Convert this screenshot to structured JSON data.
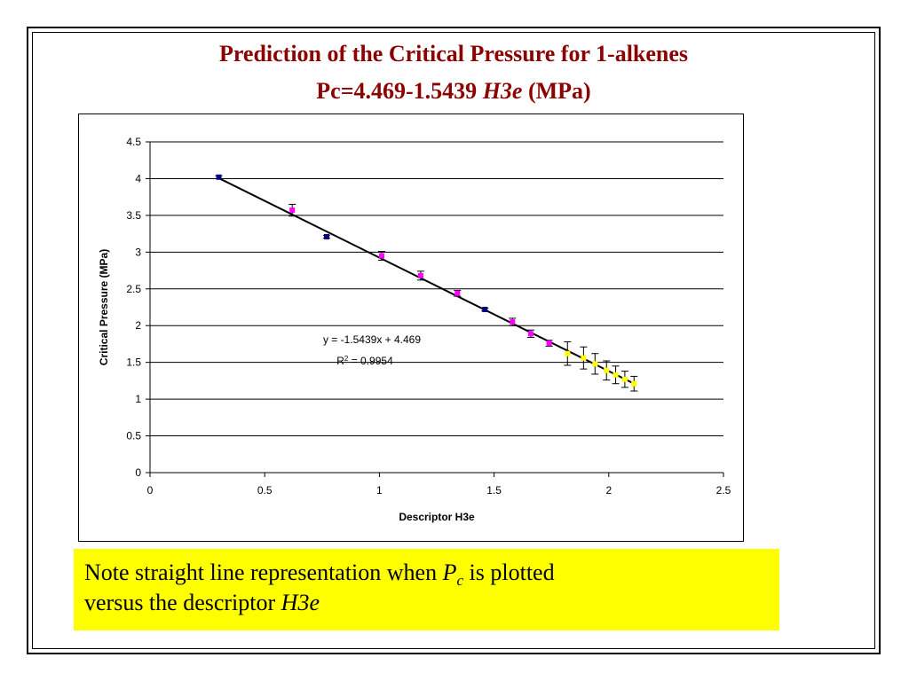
{
  "slide": {
    "title_line1": "Prediction of the Critical Pressure for 1-alkenes",
    "title_line2_prefix": "Pc=4.469-1.5439 ",
    "title_line2_italic": "H3e",
    "title_line2_suffix": " (MPa)"
  },
  "note": {
    "part1": "Note straight line representation when ",
    "italic1": "P",
    "sub1": "c",
    "part2": " is plotted",
    "part3": "versus the descriptor ",
    "italic2": "H3e"
  },
  "colors": {
    "title": "#8b0000",
    "note_background": "#ffff00",
    "series_navy": "#000080",
    "series_magenta": "#ff00ff",
    "series_yellow": "#ffff00",
    "trendline": "#000000"
  },
  "chart_data": {
    "type": "scatter",
    "xlabel": "Descriptor H3e",
    "ylabel": "Critical Pressure (MPa)",
    "xlim": [
      0,
      2.5
    ],
    "ylim": [
      0,
      4.5
    ],
    "x_ticks": [
      "0",
      "0.5",
      "1",
      "1.5",
      "2",
      "2.5"
    ],
    "y_ticks": [
      "0",
      "0.5",
      "1",
      "1.5",
      "2",
      "2.5",
      "3",
      "3.5",
      "4",
      "4.5"
    ],
    "grid": "horizontal",
    "equation_label": "y = -1.5439x + 4.469",
    "r2_label_prefix": "R",
    "r2_label_sup": "2",
    "r2_label_value": " = 0.9954",
    "trendline": {
      "slope": -1.5439,
      "intercept": 4.469,
      "x_start": 0.3,
      "x_end": 2.11
    },
    "series": [
      {
        "color": "#000080",
        "points": [
          {
            "x": 0.3,
            "y": 4.02,
            "err": 0.02
          },
          {
            "x": 0.77,
            "y": 3.21,
            "err": 0.02
          },
          {
            "x": 1.46,
            "y": 2.22,
            "err": 0.02
          }
        ]
      },
      {
        "color": "#ff00ff",
        "points": [
          {
            "x": 0.62,
            "y": 3.57,
            "err": 0.08
          },
          {
            "x": 1.01,
            "y": 2.95,
            "err": 0.06
          },
          {
            "x": 1.18,
            "y": 2.68,
            "err": 0.06
          },
          {
            "x": 1.34,
            "y": 2.44,
            "err": 0.04
          },
          {
            "x": 1.58,
            "y": 2.05,
            "err": 0.05
          },
          {
            "x": 1.66,
            "y": 1.89,
            "err": 0.05
          },
          {
            "x": 1.74,
            "y": 1.76,
            "err": 0.04
          }
        ]
      },
      {
        "color": "#ffff00",
        "points": [
          {
            "x": 1.82,
            "y": 1.62,
            "err": 0.16
          },
          {
            "x": 1.89,
            "y": 1.56,
            "err": 0.15
          },
          {
            "x": 1.94,
            "y": 1.48,
            "err": 0.14
          },
          {
            "x": 1.99,
            "y": 1.39,
            "err": 0.13
          },
          {
            "x": 2.03,
            "y": 1.33,
            "err": 0.12
          },
          {
            "x": 2.07,
            "y": 1.27,
            "err": 0.11
          },
          {
            "x": 2.11,
            "y": 1.21,
            "err": 0.1
          }
        ]
      }
    ]
  }
}
